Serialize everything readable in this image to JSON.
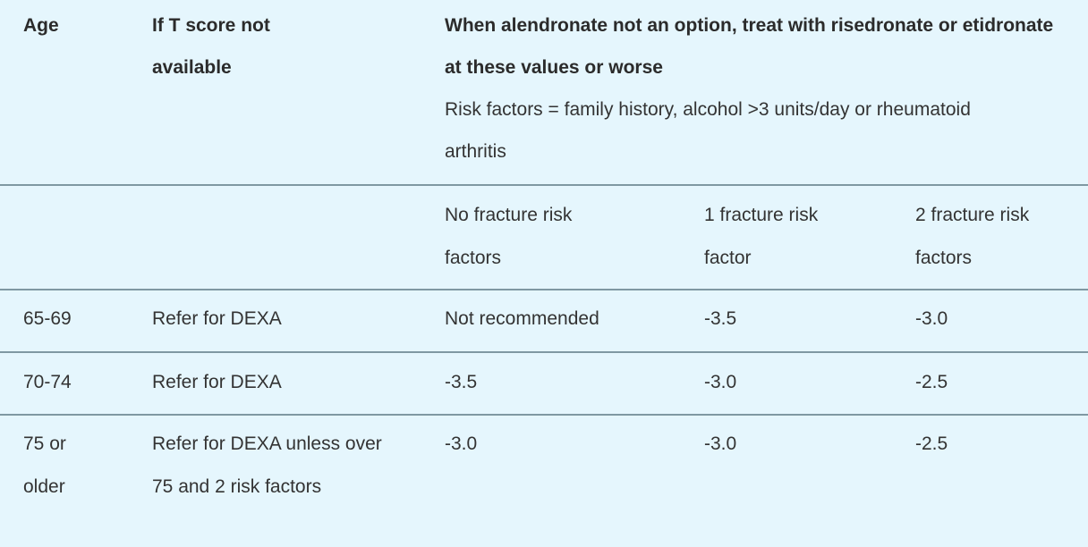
{
  "header": {
    "age": "Age",
    "no_t_score": "If T score not available",
    "treatment": "When alendronate not an option, treat with risedronate or etidronate at these values or worse",
    "risk_note": "Risk factors = family history, alcohol >3 units/day or rheumatoid arthritis"
  },
  "subheader": [
    "No fracture risk factors",
    "1 fracture risk factor",
    "2 fracture risk factors"
  ],
  "rows": [
    {
      "age": "65-69",
      "no_t": "Refer for DEXA",
      "r0": "Not recommended",
      "r1": "-3.5",
      "r2": "-3.0"
    },
    {
      "age": "70-74",
      "no_t": "Refer for DEXA",
      "r0": "-3.5",
      "r1": "-3.0",
      "r2": "-2.5"
    },
    {
      "age": "75 or older",
      "no_t": "Refer for DEXA unless over 75 and 2 risk factors",
      "r0": "-3.0",
      "r1": "-3.0",
      "r2": "-2.5"
    }
  ]
}
